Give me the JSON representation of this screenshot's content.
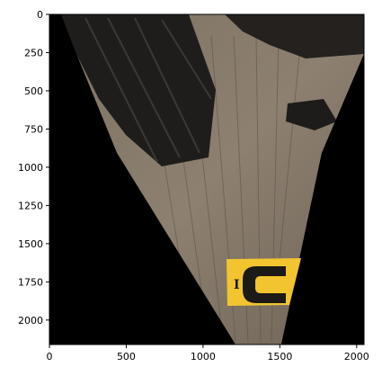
{
  "axes": {
    "x_ticks": [
      "0",
      "500",
      "1000",
      "1500",
      "2000"
    ],
    "y_ticks": [
      "0",
      "250",
      "500",
      "750",
      "1000",
      "1250",
      "1500",
      "1750",
      "2000"
    ],
    "x_tick_values": [
      0,
      500,
      1000,
      1500,
      2000
    ],
    "y_tick_values": [
      0,
      250,
      500,
      750,
      1000,
      1250,
      1500,
      1750,
      2000
    ],
    "xlim": [
      0,
      2048
    ],
    "ylim": [
      2160,
      0
    ]
  },
  "image": {
    "description_name": "warped-floor-photo",
    "logo_text": "C",
    "sign_text": "I",
    "colors": {
      "mask": "#000000",
      "floor_light": "#8a7d6c",
      "floor_dark": "#4f463c",
      "equipment": "#1f1d1b",
      "sign_yellow": "#f2c530",
      "logo_dark": "#1c1a16"
    }
  }
}
